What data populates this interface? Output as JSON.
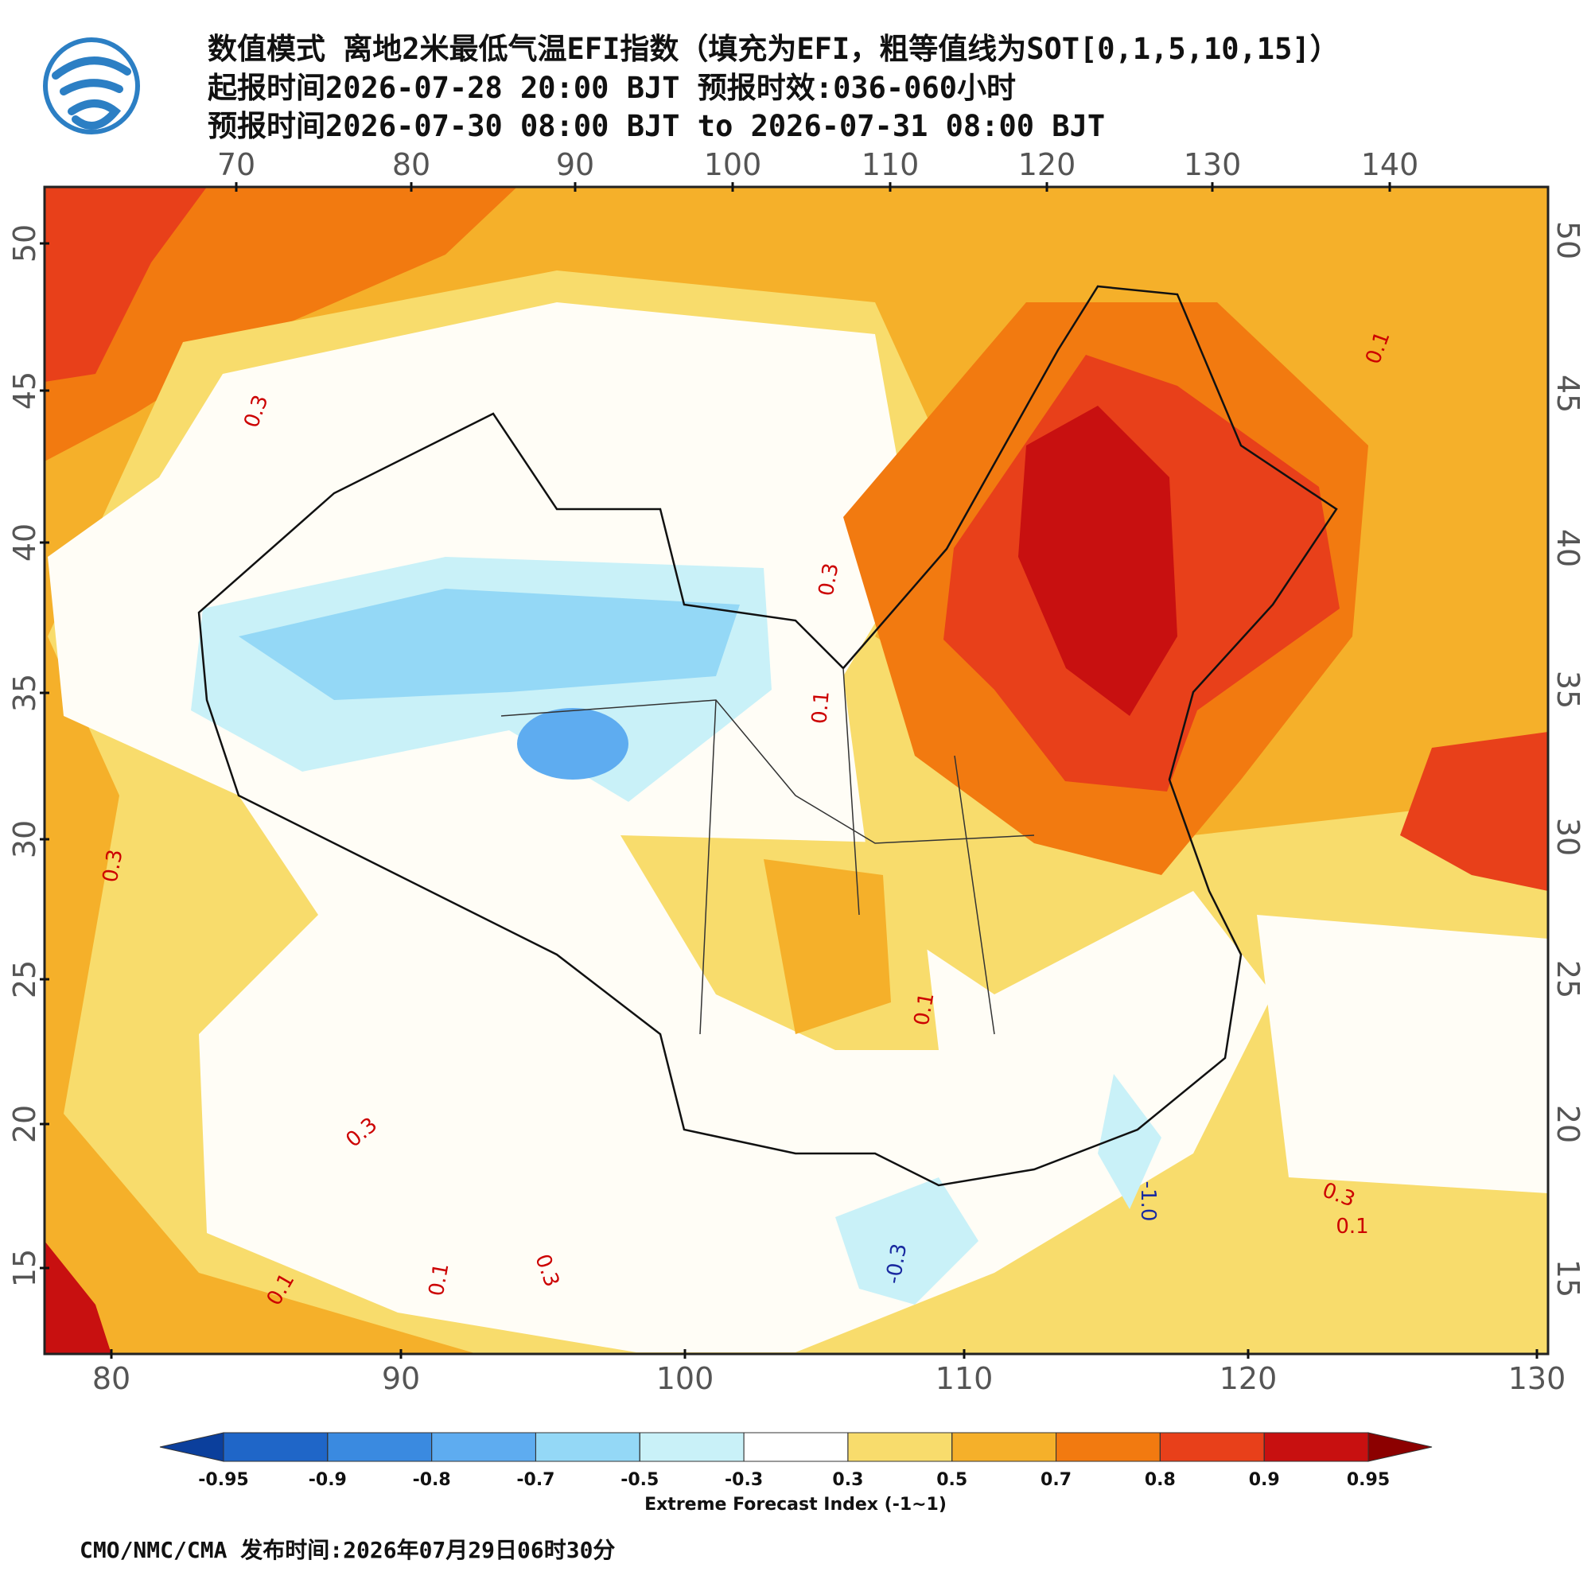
{
  "header": {
    "lines": [
      "数值模式 离地2米最低气温EFI指数（填充为EFI，粗等值线为SOT[0,1,5,10,15]）",
      "起报时间2026-07-28 20:00 BJT 预报时效:036-060小时",
      "预报时间2026-07-30 08:00 BJT to 2026-07-31 08:00 BJT"
    ]
  },
  "map": {
    "top_lon_ticks": [
      70,
      80,
      90,
      100,
      110,
      120,
      130,
      140
    ],
    "bottom_lon_ticks": [
      80,
      90,
      100,
      110,
      120,
      130
    ],
    "lat_ticks": [
      50,
      45,
      40,
      35,
      30,
      25,
      20,
      15
    ],
    "contour_labels": [
      0.3,
      0.3,
      0.3,
      0.1,
      0.1,
      0.3,
      0.1,
      0.3,
      0.1,
      -0.3,
      {
        "value": -1,
        "label": "-1.0"
      },
      0.3,
      0.1,
      0.1
    ]
  },
  "colorbar": {
    "levels": [
      -0.95,
      -0.9,
      -0.8,
      -0.7,
      -0.5,
      -0.3,
      0.3,
      0.5,
      0.7,
      0.8,
      0.9,
      0.95
    ],
    "colors": [
      "#0b3f9c",
      "#1f66c8",
      "#3a8ae0",
      "#5eacf0",
      "#94d8f6",
      "#c9f1f8",
      "#ffffff",
      "#f8dc6c",
      "#f5b02a",
      "#f27a10",
      "#e8401a",
      "#c81010",
      "#8c0000"
    ],
    "label": "Extreme Forecast Index (-1~1)"
  },
  "footer": "CMO/NMC/CMA 发布时间:2026年07月29日06时30分"
}
